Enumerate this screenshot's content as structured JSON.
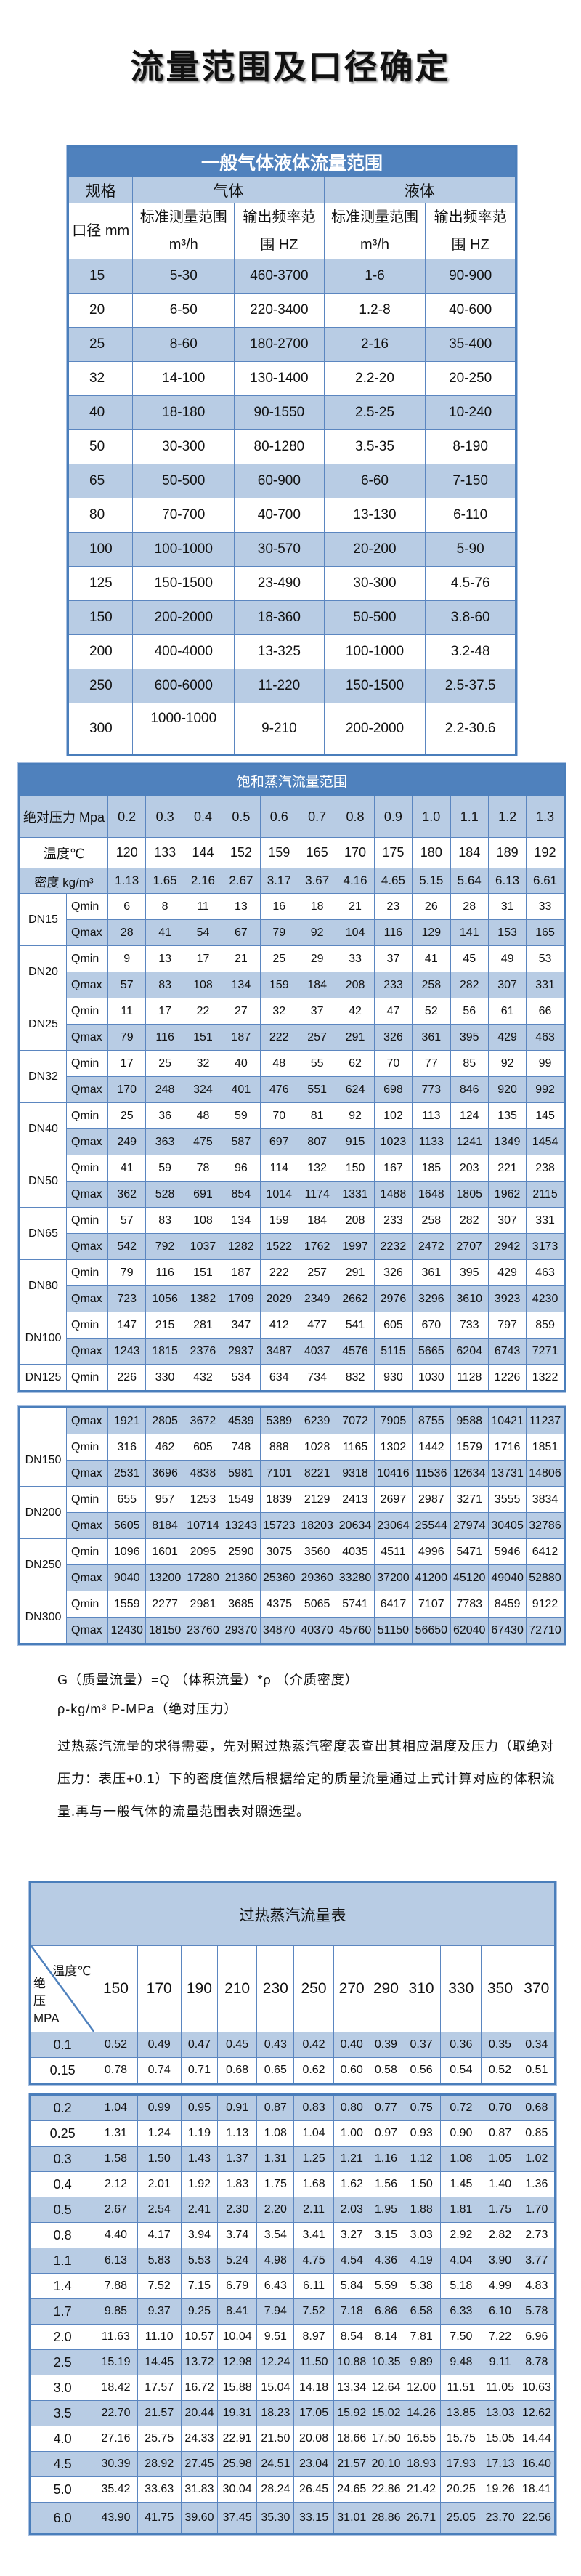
{
  "title": "流量范围及口径确定",
  "colors": {
    "header_dark": "#4f81bd",
    "row_blue": "#b8cce4",
    "border": "#4a7ebb"
  },
  "table1": {
    "title": "一般气体液体流量范围",
    "spec": "规格",
    "gas": "气体",
    "liquid": "液体",
    "caliber": "口径 mm",
    "sub": [
      {
        "l1": "标准测量范围",
        "l2": "m³/h"
      },
      {
        "l1": "输出频率范",
        "l2": "围 HZ"
      },
      {
        "l1": "标准测量范围",
        "l2": "m³/h"
      },
      {
        "l1": "输出频率范",
        "l2": "围 HZ"
      }
    ],
    "rows": [
      [
        "15",
        "5-30",
        "460-3700",
        "1-6",
        "90-900"
      ],
      [
        "20",
        "6-50",
        "220-3400",
        "1.2-8",
        "40-600"
      ],
      [
        "25",
        "8-60",
        "180-2700",
        "2-16",
        "35-400"
      ],
      [
        "32",
        "14-100",
        "130-1400",
        "2.2-20",
        "20-250"
      ],
      [
        "40",
        "18-180",
        "90-1550",
        "2.5-25",
        "10-240"
      ],
      [
        "50",
        "30-300",
        "80-1280",
        "3.5-35",
        "8-190"
      ],
      [
        "65",
        "50-500",
        "60-900",
        "6-60",
        "7-150"
      ],
      [
        "80",
        "70-700",
        "40-700",
        "13-130",
        "6-110"
      ],
      [
        "100",
        "100-1000",
        "30-570",
        "20-200",
        "5-90"
      ],
      [
        "125",
        "150-1500",
        "23-490",
        "30-300",
        "4.5-76"
      ],
      [
        "150",
        "200-2000",
        "18-360",
        "50-500",
        "3.8-60"
      ],
      [
        "200",
        "400-4000",
        "13-325",
        "100-1000",
        "3.2-48"
      ],
      [
        "250",
        "600-6000",
        "11-220",
        "150-1500",
        "2.5-37.5"
      ],
      [
        "300",
        "1000-1000",
        "9-210",
        "200-2000",
        "2.2-30.6"
      ]
    ]
  },
  "table2": {
    "title": "饱和蒸汽流量范围",
    "pressure_label": "绝对压力 Mpa",
    "pressures": [
      "0.2",
      "0.3",
      "0.4",
      "0.5",
      "0.6",
      "0.7",
      "0.8",
      "0.9",
      "1.0",
      "1.1",
      "1.2",
      "1.3"
    ],
    "temp_label": "温度℃",
    "temps": [
      "120",
      "133",
      "144",
      "152",
      "159",
      "165",
      "170",
      "175",
      "180",
      "184",
      "189",
      "192"
    ],
    "density_label": "密度 kg/m³",
    "densities": [
      "1.13",
      "1.65",
      "2.16",
      "2.67",
      "3.17",
      "3.67",
      "4.16",
      "4.65",
      "5.15",
      "5.64",
      "6.13",
      "6.61"
    ],
    "groups_part1": [
      {
        "dn": "DN15",
        "rows": [
          {
            "q": "Qmin",
            "values": [
              "6",
              "8",
              "11",
              "13",
              "16",
              "18",
              "21",
              "23",
              "26",
              "28",
              "31",
              "33"
            ]
          },
          {
            "q": "Qmax",
            "values": [
              "28",
              "41",
              "54",
              "67",
              "79",
              "92",
              "104",
              "116",
              "129",
              "141",
              "153",
              "165"
            ]
          }
        ]
      },
      {
        "dn": "DN20",
        "rows": [
          {
            "q": "Qmin",
            "values": [
              "9",
              "13",
              "17",
              "21",
              "25",
              "29",
              "33",
              "37",
              "41",
              "45",
              "49",
              "53"
            ]
          },
          {
            "q": "Qmax",
            "values": [
              "57",
              "83",
              "108",
              "134",
              "159",
              "184",
              "208",
              "233",
              "258",
              "282",
              "307",
              "331"
            ]
          }
        ]
      },
      {
        "dn": "DN25",
        "rows": [
          {
            "q": "Qmin",
            "values": [
              "11",
              "17",
              "22",
              "27",
              "32",
              "37",
              "42",
              "47",
              "52",
              "56",
              "61",
              "66"
            ]
          },
          {
            "q": "Qmax",
            "values": [
              "79",
              "116",
              "151",
              "187",
              "222",
              "257",
              "291",
              "326",
              "361",
              "395",
              "429",
              "463"
            ]
          }
        ]
      },
      {
        "dn": "DN32",
        "rows": [
          {
            "q": "Qmin",
            "values": [
              "17",
              "25",
              "32",
              "40",
              "48",
              "55",
              "62",
              "70",
              "77",
              "85",
              "92",
              "99"
            ]
          },
          {
            "q": "Qmax",
            "values": [
              "170",
              "248",
              "324",
              "401",
              "476",
              "551",
              "624",
              "698",
              "773",
              "846",
              "920",
              "992"
            ]
          }
        ]
      },
      {
        "dn": "DN40",
        "rows": [
          {
            "q": "Qmin",
            "values": [
              "25",
              "36",
              "48",
              "59",
              "70",
              "81",
              "92",
              "102",
              "113",
              "124",
              "135",
              "145"
            ]
          },
          {
            "q": "Qmax",
            "values": [
              "249",
              "363",
              "475",
              "587",
              "697",
              "807",
              "915",
              "1023",
              "1133",
              "1241",
              "1349",
              "1454"
            ]
          }
        ]
      },
      {
        "dn": "DN50",
        "rows": [
          {
            "q": "Qmin",
            "values": [
              "41",
              "59",
              "78",
              "96",
              "114",
              "132",
              "150",
              "167",
              "185",
              "203",
              "221",
              "238"
            ]
          },
          {
            "q": "Qmax",
            "values": [
              "362",
              "528",
              "691",
              "854",
              "1014",
              "1174",
              "1331",
              "1488",
              "1648",
              "1805",
              "1962",
              "2115"
            ]
          }
        ]
      },
      {
        "dn": "DN65",
        "rows": [
          {
            "q": "Qmin",
            "values": [
              "57",
              "83",
              "108",
              "134",
              "159",
              "184",
              "208",
              "233",
              "258",
              "282",
              "307",
              "331"
            ]
          },
          {
            "q": "Qmax",
            "values": [
              "542",
              "792",
              "1037",
              "1282",
              "1522",
              "1762",
              "1997",
              "2232",
              "2472",
              "2707",
              "2942",
              "3173"
            ]
          }
        ]
      },
      {
        "dn": "DN80",
        "rows": [
          {
            "q": "Qmin",
            "values": [
              "79",
              "116",
              "151",
              "187",
              "222",
              "257",
              "291",
              "326",
              "361",
              "395",
              "429",
              "463"
            ]
          },
          {
            "q": "Qmax",
            "values": [
              "723",
              "1056",
              "1382",
              "1709",
              "2029",
              "2349",
              "2662",
              "2976",
              "3296",
              "3610",
              "3923",
              "4230"
            ]
          }
        ]
      },
      {
        "dn": "DN100",
        "rows": [
          {
            "q": "Qmin",
            "values": [
              "147",
              "215",
              "281",
              "347",
              "412",
              "477",
              "541",
              "605",
              "670",
              "733",
              "797",
              "859"
            ]
          },
          {
            "q": "Qmax",
            "values": [
              "1243",
              "1815",
              "2376",
              "2937",
              "3487",
              "4037",
              "4576",
              "5115",
              "5665",
              "6204",
              "6743",
              "7271"
            ]
          }
        ]
      },
      {
        "dn": "DN125",
        "rows": [
          {
            "q": "Qmin",
            "values": [
              "226",
              "330",
              "432",
              "534",
              "634",
              "734",
              "832",
              "930",
              "1030",
              "1128",
              "1226",
              "1322"
            ]
          }
        ]
      }
    ],
    "groups_part2": [
      {
        "dn": "",
        "rows": [
          {
            "q": "Qmax",
            "values": [
              "1921",
              "2805",
              "3672",
              "4539",
              "5389",
              "6239",
              "7072",
              "7905",
              "8755",
              "9588",
              "10421",
              "11237"
            ]
          }
        ]
      },
      {
        "dn": "DN150",
        "rows": [
          {
            "q": "Qmin",
            "values": [
              "316",
              "462",
              "605",
              "748",
              "888",
              "1028",
              "1165",
              "1302",
              "1442",
              "1579",
              "1716",
              "1851"
            ]
          },
          {
            "q": "Qmax",
            "values": [
              "2531",
              "3696",
              "4838",
              "5981",
              "7101",
              "8221",
              "9318",
              "10416",
              "11536",
              "12634",
              "13731",
              "14806"
            ]
          }
        ]
      },
      {
        "dn": "DN200",
        "rows": [
          {
            "q": "Qmin",
            "values": [
              "655",
              "957",
              "1253",
              "1549",
              "1839",
              "2129",
              "2413",
              "2697",
              "2987",
              "3271",
              "3555",
              "3834"
            ]
          },
          {
            "q": "Qmax",
            "values": [
              "5605",
              "8184",
              "10714",
              "13243",
              "15723",
              "18203",
              "20634",
              "23064",
              "25544",
              "27974",
              "30405",
              "32786"
            ]
          }
        ]
      },
      {
        "dn": "DN250",
        "rows": [
          {
            "q": "Qmin",
            "values": [
              "1096",
              "1601",
              "2095",
              "2590",
              "3075",
              "3560",
              "4035",
              "4511",
              "4996",
              "5471",
              "5946",
              "6412"
            ]
          },
          {
            "q": "Qmax",
            "values": [
              "9040",
              "13200",
              "17280",
              "21360",
              "25360",
              "29360",
              "33280",
              "37200",
              "41200",
              "45120",
              "49040",
              "52880"
            ]
          }
        ]
      },
      {
        "dn": "DN300",
        "rows": [
          {
            "q": "Qmin",
            "values": [
              "1559",
              "2277",
              "2981",
              "3685",
              "4375",
              "5065",
              "5741",
              "6417",
              "7107",
              "7783",
              "8459",
              "9122"
            ]
          },
          {
            "q": "Qmax",
            "values": [
              "12430",
              "18150",
              "23760",
              "29370",
              "34870",
              "40370",
              "45760",
              "51150",
              "56650",
              "62040",
              "67430",
              "72710"
            ]
          }
        ]
      }
    ]
  },
  "notes": {
    "formula": "G（质量流量）=Q （体积流量）*ρ （介质密度）",
    "units": "ρ-kg/m³ P-MPa（绝对压力）",
    "paragraph": "过热蒸汽流量的求得需要，先对照过热蒸汽密度表查出其相应温度及压力（取绝对压力：表压+0.1）下的密度值然后根据给定的质量流量通过上式计算对应的体积流量.再与一般气体的流量范围表对照选型。"
  },
  "table3": {
    "title": "过热蒸汽流量表",
    "temp_label": "温度℃",
    "pressure_label": "绝压MPA",
    "temps": [
      "150",
      "170",
      "190",
      "210",
      "230",
      "250",
      "270",
      "290",
      "310",
      "330",
      "350",
      "370"
    ],
    "rows_part1": [
      {
        "p": "0.1",
        "values": [
          "0.52",
          "0.49",
          "0.47",
          "0.45",
          "0.43",
          "0.42",
          "0.40",
          "0.39",
          "0.37",
          "0.36",
          "0.35",
          "0.34"
        ]
      },
      {
        "p": "0.15",
        "values": [
          "0.78",
          "0.74",
          "0.71",
          "0.68",
          "0.65",
          "0.62",
          "0.60",
          "0.58",
          "0.56",
          "0.54",
          "0.52",
          "0.51"
        ]
      }
    ],
    "rows_part2": [
      {
        "p": "0.2",
        "values": [
          "1.04",
          "0.99",
          "0.95",
          "0.91",
          "0.87",
          "0.83",
          "0.80",
          "0.77",
          "0.75",
          "0.72",
          "0.70",
          "0.68"
        ]
      },
      {
        "p": "0.25",
        "values": [
          "1.31",
          "1.24",
          "1.19",
          "1.13",
          "1.08",
          "1.04",
          "1.00",
          "0.97",
          "0.93",
          "0.90",
          "0.87",
          "0.85"
        ]
      },
      {
        "p": "0.3",
        "values": [
          "1.58",
          "1.50",
          "1.43",
          "1.37",
          "1.31",
          "1.25",
          "1.21",
          "1.16",
          "1.12",
          "1.08",
          "1.05",
          "1.02"
        ]
      },
      {
        "p": "0.4",
        "values": [
          "2.12",
          "2.01",
          "1.92",
          "1.83",
          "1.75",
          "1.68",
          "1.62",
          "1.56",
          "1.50",
          "1.45",
          "1.40",
          "1.36"
        ]
      },
      {
        "p": "0.5",
        "values": [
          "2.67",
          "2.54",
          "2.41",
          "2.30",
          "2.20",
          "2.11",
          "2.03",
          "1.95",
          "1.88",
          "1.81",
          "1.75",
          "1.70"
        ]
      },
      {
        "p": "0.8",
        "values": [
          "4.40",
          "4.17",
          "3.94",
          "3.74",
          "3.54",
          "3.41",
          "3.27",
          "3.15",
          "3.03",
          "2.92",
          "2.82",
          "2.73"
        ]
      },
      {
        "p": "1.1",
        "values": [
          "6.13",
          "5.83",
          "5.53",
          "5.24",
          "4.98",
          "4.75",
          "4.54",
          "4.36",
          "4.19",
          "4.04",
          "3.90",
          "3.77"
        ]
      },
      {
        "p": "1.4",
        "values": [
          "7.88",
          "7.52",
          "7.15",
          "6.79",
          "6.43",
          "6.11",
          "5.84",
          "5.59",
          "5.38",
          "5.18",
          "4.99",
          "4.83"
        ]
      },
      {
        "p": "1.7",
        "values": [
          "9.85",
          "9.37",
          "9.25",
          "8.41",
          "7.94",
          "7.52",
          "7.18",
          "6.86",
          "6.58",
          "6.33",
          "6.10",
          "5.78"
        ]
      },
      {
        "p": "2.0",
        "values": [
          "11.63",
          "11.10",
          "10.57",
          "10.04",
          "9.51",
          "8.97",
          "8.54",
          "8.14",
          "7.81",
          "7.50",
          "7.22",
          "6.96"
        ]
      },
      {
        "p": "2.5",
        "values": [
          "15.19",
          "14.45",
          "13.72",
          "12.98",
          "12.24",
          "11.50",
          "10.88",
          "10.35",
          "9.89",
          "9.48",
          "9.11",
          "8.78"
        ]
      },
      {
        "p": "3.0",
        "values": [
          "18.42",
          "17.57",
          "16.72",
          "15.88",
          "15.04",
          "14.18",
          "13.34",
          "12.64",
          "12.00",
          "11.51",
          "11.05",
          "10.63"
        ]
      },
      {
        "p": "3.5",
        "values": [
          "22.70",
          "21.57",
          "20.44",
          "19.31",
          "18.23",
          "17.05",
          "15.92",
          "15.02",
          "14.26",
          "13.85",
          "13.03",
          "12.62"
        ]
      },
      {
        "p": "4.0",
        "values": [
          "27.16",
          "25.75",
          "24.33",
          "22.91",
          "21.50",
          "20.08",
          "18.66",
          "17.50",
          "16.55",
          "15.75",
          "15.05",
          "14.44"
        ]
      },
      {
        "p": "4.5",
        "values": [
          "30.39",
          "28.92",
          "27.45",
          "25.98",
          "24.51",
          "23.04",
          "21.57",
          "20.10",
          "18.93",
          "17.93",
          "17.13",
          "16.40"
        ]
      },
      {
        "p": "5.0",
        "values": [
          "35.42",
          "33.63",
          "31.83",
          "30.04",
          "28.24",
          "26.45",
          "24.65",
          "22.86",
          "21.42",
          "20.25",
          "19.26",
          "18.41"
        ]
      },
      {
        "p": "6.0",
        "values": [
          "43.90",
          "41.75",
          "39.60",
          "37.45",
          "35.30",
          "33.15",
          "31.01",
          "28.86",
          "26.71",
          "25.05",
          "23.70",
          "22.56"
        ]
      }
    ]
  }
}
